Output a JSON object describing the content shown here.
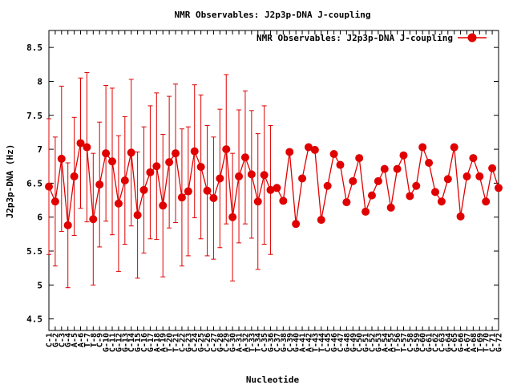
{
  "chart_data": {
    "type": "line",
    "title": "NMR Observables: J2p3p-DNA J-coupling",
    "xlabel": "Nucleotide",
    "ylabel": "J2p3p-DNA (Hz)",
    "ylim": [
      4.33,
      8.75
    ],
    "yticks": [
      4.5,
      5,
      5.5,
      6,
      6.5,
      7,
      7.5,
      8,
      8.5
    ],
    "ytick_labels": [
      "4.5",
      "5",
      "5.5",
      "6",
      "6.5",
      "7",
      "7.5",
      "8",
      "8.5"
    ],
    "grid": false,
    "legend_position": "top-right",
    "color": "#e00000",
    "series": [
      {
        "name": "NMR Observables: J2p3p-DNA J-coupling",
        "segments": [
          {
            "x": [
              1,
              2,
              3,
              4,
              5,
              6,
              7,
              8,
              9,
              10,
              11,
              12,
              13,
              14,
              15,
              16,
              17,
              18,
              19,
              20,
              21,
              22,
              23,
              24,
              25,
              26,
              27,
              28,
              29,
              30,
              31,
              32,
              33,
              34,
              35,
              36
            ],
            "y": [
              6.45,
              6.23,
              6.86,
              5.88,
              6.6,
              7.09,
              7.03,
              5.97,
              6.48,
              6.94,
              6.82,
              6.2,
              6.54,
              6.95,
              6.03,
              6.4,
              6.66,
              6.75,
              6.17,
              6.81,
              6.94,
              6.29,
              6.38,
              6.97,
              6.74,
              6.39,
              6.28,
              6.57,
              7.0,
              6.0,
              6.6,
              6.88,
              6.63,
              6.23,
              6.62,
              6.4
            ],
            "err": [
              1.0,
              0.95,
              1.07,
              0.92,
              0.87,
              0.96,
              1.1,
              0.97,
              0.92,
              1.0,
              1.08,
              1.0,
              0.94,
              1.08,
              0.93,
              0.93,
              0.98,
              1.08,
              1.05,
              0.97,
              1.02,
              1.01,
              0.95,
              0.98,
              1.06,
              0.96,
              0.9,
              1.02,
              1.1,
              0.94,
              0.98,
              0.98,
              0.94,
              1.0,
              1.02,
              0.95
            ]
          },
          {
            "x": [
              37,
              38,
              39,
              40,
              41,
              42,
              43,
              44,
              45,
              46,
              47,
              48,
              49,
              50,
              51,
              52,
              53,
              54,
              55,
              56,
              57,
              58,
              59,
              60,
              61,
              62,
              63,
              64,
              65,
              66,
              67,
              68,
              69,
              70,
              71,
              72
            ],
            "y": [
              6.43,
              6.24,
              6.96,
              5.9,
              6.57,
              7.03,
              6.99,
              5.96,
              6.46,
              6.93,
              6.77,
              6.22,
              6.53,
              6.87,
              6.08,
              6.32,
              6.53,
              6.71,
              6.14,
              6.71,
              6.91,
              6.31,
              6.46,
              7.03,
              6.8,
              6.37,
              6.23,
              6.56,
              7.03,
              6.01,
              6.6,
              6.87,
              6.6,
              6.23,
              6.72,
              6.43
            ]
          }
        ]
      }
    ],
    "categories": [
      "C-1",
      "G-2",
      "C-3",
      "G-4",
      "A-5",
      "A-6",
      "T-7",
      "T-8",
      "C-9",
      "G-10",
      "C-11",
      "G-12",
      "G-13",
      "C-14",
      "G-15",
      "C-16",
      "G-17",
      "A-18",
      "A-19",
      "T-20",
      "T-21",
      "C-22",
      "G-23",
      "C-24",
      "G-25",
      "C-26",
      "C-27",
      "G-28",
      "C-29",
      "G-30",
      "A-31",
      "A-32",
      "T-33",
      "T-34",
      "C-35",
      "G-36",
      "C-37",
      "G-38",
      "C-39",
      "G-40",
      "A-41",
      "A-42",
      "T-43",
      "T-44",
      "C-45",
      "G-46",
      "C-47",
      "G-48",
      "G-49",
      "C-50",
      "G-51",
      "C-52",
      "G-53",
      "A-54",
      "A-55",
      "T-56",
      "T-57",
      "C-58",
      "G-59",
      "C-60",
      "G-61",
      "C-62",
      "C-63",
      "G-64",
      "C-65",
      "G-66",
      "A-67",
      "A-68",
      "T-69",
      "T-70",
      "C-71",
      "G-72"
    ]
  }
}
